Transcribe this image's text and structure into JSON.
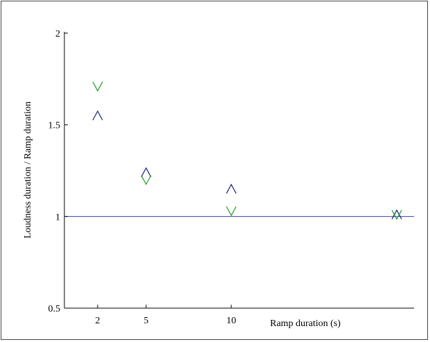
{
  "chart_data": {
    "type": "scatter",
    "title": "",
    "xlabel": "Ramp duration (s)",
    "ylabel": "Loudness duration / Ramp duration",
    "x_ticks": [
      2,
      5,
      10
    ],
    "y_ticks": [
      0.5,
      1,
      1.5,
      2
    ],
    "y_tick_labels": [
      "0.5",
      "1",
      "1.5",
      "2"
    ],
    "xlim": [
      0,
      22
    ],
    "ylim": [
      0.5,
      2
    ],
    "grid": false,
    "reference_line": {
      "y": 1,
      "color": "#3a3ab0"
    },
    "series": [
      {
        "marker": "triangle-up",
        "color": "#1f1f7a",
        "points": [
          {
            "x": 2,
            "y": 1.55
          },
          {
            "x": 5,
            "y": 1.24
          },
          {
            "x": 10,
            "y": 1.15
          },
          {
            "x": 20,
            "y": 1.01
          }
        ]
      },
      {
        "marker": "triangle-down",
        "color": "#1e9e1e",
        "points": [
          {
            "x": 2,
            "y": 1.71
          },
          {
            "x": 5,
            "y": 1.2
          },
          {
            "x": 10,
            "y": 1.03
          },
          {
            "x": 20,
            "y": 1.01
          }
        ]
      }
    ]
  }
}
